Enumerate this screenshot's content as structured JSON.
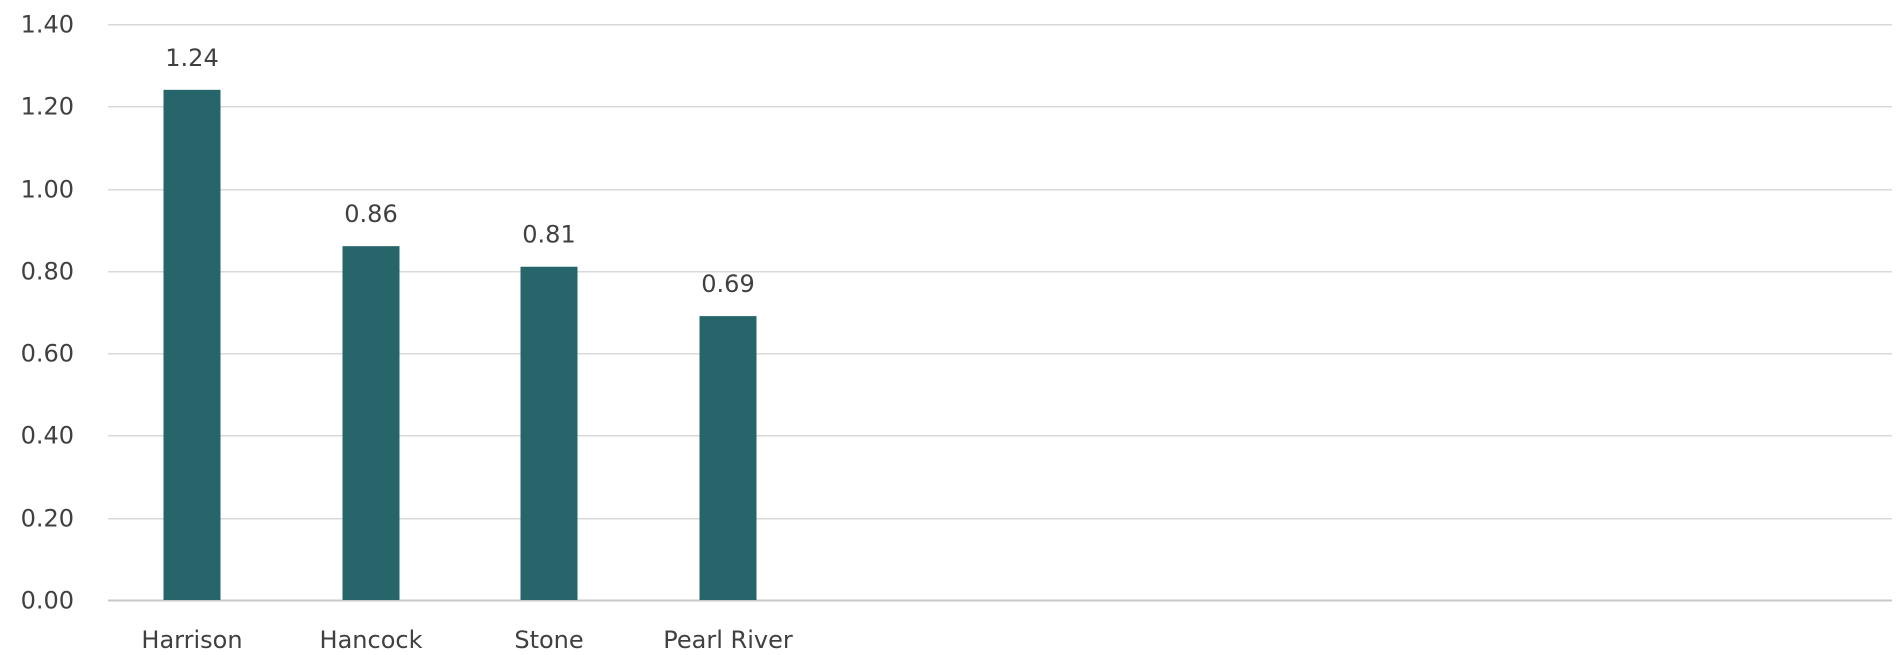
{
  "chart_data": {
    "type": "bar",
    "title": "",
    "xlabel": "",
    "ylabel": "",
    "categories": [
      "Harrison",
      "Hancock",
      "Stone",
      "Pearl River"
    ],
    "values": [
      1.24,
      0.86,
      0.81,
      0.69
    ],
    "data_labels": [
      "1.24",
      "0.86",
      "0.81",
      "0.69"
    ],
    "ylim": [
      0,
      1.4
    ],
    "yticks": [
      0,
      0.2,
      0.4,
      0.6,
      0.8,
      1.0,
      1.2,
      1.4
    ],
    "ytick_labels": [
      "0.00",
      "0.20",
      "0.40",
      "0.60",
      "0.80",
      "1.00",
      "1.20",
      "1.40"
    ],
    "grid": true,
    "legend": "none",
    "colors": {
      "bar": "#266569",
      "grid": "#d9d9d9",
      "text": "#404040"
    }
  }
}
